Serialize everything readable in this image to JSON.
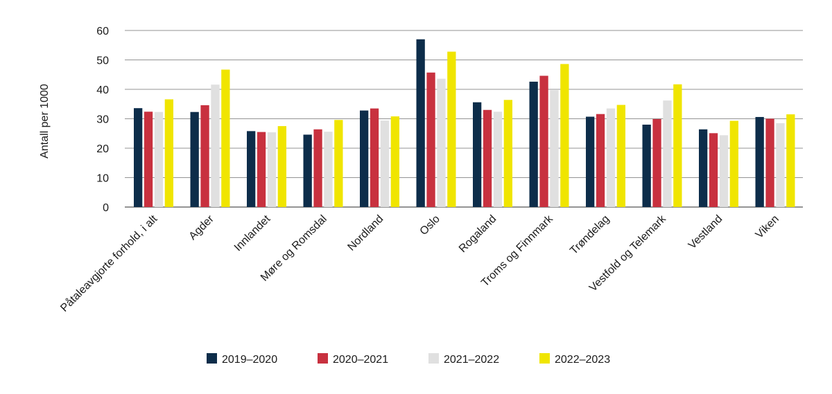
{
  "chart_data": {
    "type": "bar",
    "title": "",
    "xlabel": "",
    "ylabel": "Antall per 1000",
    "ylim": [
      0,
      60
    ],
    "yticks": [
      0,
      10,
      20,
      30,
      40,
      50,
      60
    ],
    "grid": true,
    "legend_position": "bottom",
    "categories": [
      "Påtaleavgjorte forhold, i alt",
      "Agder",
      "Innlandet",
      "Møre og Romsdal",
      "Nordland",
      "Oslo",
      "Rogaland",
      "Troms og Finnmark",
      "Trøndelag",
      "Vestfold og Telemark",
      "Vestland",
      "Viken"
    ],
    "series": [
      {
        "name": "2019–2020",
        "color": "#0d2d4a",
        "values": [
          33.6,
          32.3,
          25.8,
          24.6,
          32.8,
          57.0,
          35.6,
          42.6,
          30.7,
          28.0,
          26.4,
          30.6
        ]
      },
      {
        "name": "2020–2021",
        "color": "#c8313f",
        "values": [
          32.4,
          34.6,
          25.5,
          26.4,
          33.5,
          45.7,
          33.0,
          44.6,
          31.6,
          29.9,
          25.1,
          30.0
        ]
      },
      {
        "name": "2021–2022",
        "color": "#e0e0e0",
        "values": [
          32.3,
          41.6,
          25.4,
          25.6,
          29.4,
          43.6,
          32.4,
          39.7,
          33.5,
          36.2,
          24.4,
          28.5
        ]
      },
      {
        "name": "2022–2023",
        "color": "#f0e500",
        "values": [
          36.6,
          46.7,
          27.5,
          29.6,
          30.8,
          52.8,
          36.4,
          48.6,
          34.7,
          41.7,
          29.3,
          31.5
        ]
      }
    ]
  }
}
